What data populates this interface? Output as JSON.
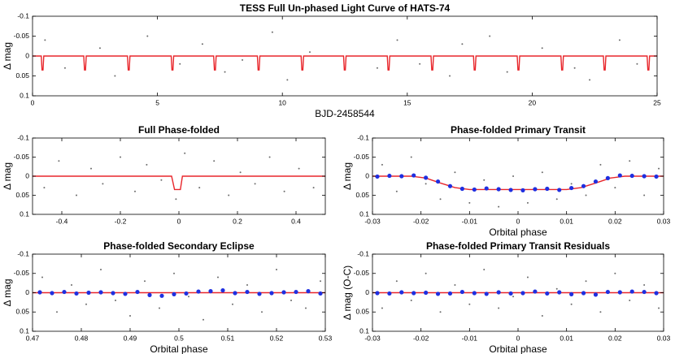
{
  "chart_data": [
    {
      "type": "scatter",
      "title": "TESS Full Un-phased Light Curve of HATS-74",
      "x_label": "BJD-2458544",
      "y_label": "Δ mag",
      "xlim": [
        0,
        25
      ],
      "xticks": [
        0,
        5,
        10,
        15,
        20,
        25
      ],
      "ylim": [
        -0.1,
        0.1
      ],
      "yticks": [
        -0.1,
        -0.05,
        0,
        0.05,
        0.1
      ],
      "y_inverted": true,
      "series": [
        {
          "mode": "markers",
          "color": "#6b6b6b",
          "x": [
            0.5,
            1.3,
            2.7,
            3.3,
            4.6,
            5.9,
            6.8,
            7.7,
            8.4,
            9.6,
            10.2,
            11.1,
            13.8,
            14.6,
            15.5,
            16.7,
            17.2,
            18.3,
            19.0,
            20.4,
            21.7,
            22.3,
            23.5,
            24.2
          ],
          "values": [
            -0.04,
            0.03,
            -0.02,
            0.05,
            -0.05,
            0.02,
            -0.03,
            0.04,
            0.01,
            -0.06,
            0.06,
            -0.01,
            0.03,
            -0.04,
            0.02,
            0.05,
            -0.03,
            -0.05,
            0.04,
            -0.02,
            0.03,
            0.06,
            -0.04,
            0.02
          ]
        },
        {
          "mode": "line",
          "color": "#e8262b",
          "x": [
            0,
            0.35,
            0.38,
            0.42,
            0.45,
            2.05,
            2.08,
            2.12,
            2.15,
            3.8,
            3.83,
            3.87,
            3.9,
            5.55,
            5.58,
            5.62,
            5.65,
            7.25,
            7.28,
            7.32,
            7.35,
            9.0,
            9.03,
            9.07,
            9.1,
            10.75,
            10.78,
            10.82,
            10.85,
            12.45,
            12.48,
            12.52,
            12.55,
            14.2,
            14.23,
            14.27,
            14.3,
            15.95,
            15.98,
            16.02,
            16.05,
            17.65,
            17.68,
            17.72,
            17.75,
            19.4,
            19.43,
            19.47,
            19.5,
            21.15,
            21.18,
            21.22,
            21.25,
            22.85,
            22.88,
            22.92,
            22.95,
            24.6,
            24.63,
            24.67,
            24.7,
            25
          ],
          "values": [
            0,
            0,
            0.035,
            0.035,
            0,
            0,
            0.035,
            0.035,
            0,
            0,
            0.035,
            0.035,
            0,
            0,
            0.035,
            0.035,
            0,
            0,
            0.035,
            0.035,
            0,
            0,
            0.035,
            0.035,
            0,
            0,
            0.035,
            0.035,
            0,
            0,
            0.035,
            0.035,
            0,
            0,
            0.035,
            0.035,
            0,
            0,
            0.035,
            0.035,
            0,
            0,
            0.035,
            0.035,
            0,
            0,
            0.035,
            0.035,
            0,
            0,
            0.035,
            0.035,
            0,
            0,
            0.035,
            0.035,
            0,
            0,
            0.035,
            0.035,
            0,
            0
          ]
        }
      ]
    },
    {
      "type": "scatter",
      "title": "Full Phase-folded",
      "y_label": "Δ mag",
      "xlim": [
        -0.5,
        0.5
      ],
      "xticks": [
        -0.4,
        -0.2,
        0,
        0.2,
        0.4
      ],
      "ylim": [
        -0.1,
        0.1
      ],
      "yticks": [
        -0.1,
        -0.05,
        0,
        0.05,
        0.1
      ],
      "y_inverted": true,
      "series": [
        {
          "mode": "markers",
          "color": "#6b6b6b",
          "x": [
            -0.46,
            -0.41,
            -0.35,
            -0.3,
            -0.26,
            -0.2,
            -0.15,
            -0.11,
            -0.06,
            -0.01,
            0.02,
            0.07,
            0.12,
            0.17,
            0.21,
            0.26,
            0.31,
            0.36,
            0.41,
            0.46
          ],
          "values": [
            0.03,
            -0.04,
            0.05,
            -0.02,
            0.02,
            -0.05,
            0.04,
            -0.03,
            0.01,
            0.06,
            -0.06,
            0.03,
            -0.04,
            0.05,
            -0.01,
            0.02,
            -0.05,
            0.04,
            -0.02,
            0.03
          ]
        },
        {
          "mode": "line",
          "color": "#e8262b",
          "x": [
            -0.5,
            -0.025,
            -0.015,
            0.005,
            0.012,
            0.5
          ],
          "values": [
            0,
            0,
            0.035,
            0.035,
            0,
            0
          ]
        }
      ]
    },
    {
      "type": "scatter",
      "title": "Phase-folded Primary Transit",
      "x_label": "Orbital phase",
      "y_label": "Δ mag",
      "xlim": [
        -0.03,
        0.03
      ],
      "xticks": [
        -0.03,
        -0.02,
        -0.01,
        0,
        0.01,
        0.02,
        0.03
      ],
      "ylim": [
        -0.1,
        0.1
      ],
      "yticks": [
        -0.1,
        -0.05,
        0,
        0.05,
        0.1
      ],
      "y_inverted": true,
      "series": [
        {
          "mode": "markers",
          "color": "#6b6b6b",
          "x": [
            -0.028,
            -0.025,
            -0.022,
            -0.019,
            -0.016,
            -0.013,
            -0.01,
            -0.007,
            -0.004,
            -0.001,
            0.002,
            0.005,
            0.008,
            0.011,
            0.014,
            0.017,
            0.02,
            0.023,
            0.026,
            0.029
          ],
          "values": [
            -0.03,
            0.04,
            -0.05,
            0.02,
            0.06,
            -0.01,
            0.07,
            0.01,
            0.08,
            0.0,
            0.07,
            -0.01,
            0.06,
            0.02,
            0.05,
            -0.03,
            0.03,
            -0.04,
            0.05,
            -0.02
          ]
        },
        {
          "mode": "line",
          "color": "#e8262b",
          "x": [
            -0.03,
            -0.022,
            -0.019,
            -0.016,
            -0.013,
            -0.01,
            0,
            0.01,
            0.013,
            0.016,
            0.019,
            0.022,
            0.03
          ],
          "values": [
            0,
            0,
            0.005,
            0.018,
            0.03,
            0.035,
            0.035,
            0.035,
            0.03,
            0.018,
            0.005,
            0,
            0
          ]
        },
        {
          "mode": "markers",
          "color": "#1f2fe0",
          "x": [
            -0.029,
            -0.0265,
            -0.024,
            -0.0215,
            -0.019,
            -0.0165,
            -0.014,
            -0.0115,
            -0.009,
            -0.0065,
            -0.004,
            -0.0015,
            0.001,
            0.0035,
            0.006,
            0.0085,
            0.011,
            0.0135,
            0.016,
            0.0185,
            0.021,
            0.0235,
            0.026,
            0.0285
          ],
          "values": [
            0.001,
            -0.001,
            0.0,
            -0.002,
            0.004,
            0.014,
            0.026,
            0.033,
            0.035,
            0.032,
            0.034,
            0.036,
            0.037,
            0.034,
            0.033,
            0.036,
            0.031,
            0.026,
            0.014,
            0.005,
            -0.002,
            -0.001,
            0.0,
            0.001
          ]
        }
      ]
    },
    {
      "type": "scatter",
      "title": "Phase-folded Secondary Eclipse",
      "x_label": "Orbital phase",
      "y_label": "Δ mag",
      "xlim": [
        0.47,
        0.53
      ],
      "xticks": [
        0.47,
        0.48,
        0.49,
        0.5,
        0.51,
        0.52,
        0.53
      ],
      "ylim": [
        -0.1,
        0.1
      ],
      "yticks": [
        -0.1,
        -0.05,
        0,
        0.05,
        0.1
      ],
      "y_inverted": true,
      "series": [
        {
          "mode": "markers",
          "color": "#6b6b6b",
          "x": [
            0.472,
            0.475,
            0.478,
            0.481,
            0.484,
            0.487,
            0.49,
            0.493,
            0.496,
            0.499,
            0.502,
            0.505,
            0.508,
            0.511,
            0.514,
            0.517,
            0.52,
            0.523,
            0.526,
            0.529
          ],
          "values": [
            -0.04,
            0.05,
            -0.02,
            0.03,
            -0.06,
            0.02,
            0.06,
            -0.03,
            0.04,
            -0.05,
            0.01,
            0.07,
            -0.04,
            0.03,
            -0.02,
            0.05,
            -0.06,
            0.02,
            0.04,
            -0.03
          ]
        },
        {
          "mode": "line",
          "color": "#e8262b",
          "x": [
            0.47,
            0.53
          ],
          "values": [
            0,
            0
          ]
        },
        {
          "mode": "markers",
          "color": "#1f2fe0",
          "x": [
            0.4715,
            0.474,
            0.4765,
            0.479,
            0.4815,
            0.484,
            0.4865,
            0.489,
            0.4915,
            0.494,
            0.4965,
            0.499,
            0.5015,
            0.504,
            0.5065,
            0.509,
            0.5115,
            0.514,
            0.5165,
            0.519,
            0.5215,
            0.524,
            0.5265,
            0.529
          ],
          "values": [
            -0.001,
            0.001,
            -0.002,
            0.002,
            0.0,
            -0.001,
            0.001,
            0.003,
            -0.002,
            0.006,
            0.008,
            0.004,
            0.002,
            -0.003,
            -0.004,
            -0.006,
            0.001,
            -0.002,
            0.003,
            0.001,
            -0.001,
            -0.002,
            -0.004,
            0.002
          ]
        }
      ]
    },
    {
      "type": "scatter",
      "title": "Phase-folded Primary Transit Residuals",
      "x_label": "Orbital phase",
      "y_label": "Δ mag (O-C)",
      "xlim": [
        -0.03,
        0.03
      ],
      "xticks": [
        -0.03,
        -0.02,
        -0.01,
        0,
        0.01,
        0.02,
        0.03
      ],
      "ylim": [
        -0.1,
        0.1
      ],
      "yticks": [
        -0.1,
        -0.05,
        0,
        0.05,
        0.1
      ],
      "y_inverted": true,
      "series": [
        {
          "mode": "markers",
          "color": "#6b6b6b",
          "x": [
            -0.028,
            -0.025,
            -0.022,
            -0.019,
            -0.016,
            -0.013,
            -0.01,
            -0.007,
            -0.004,
            -0.001,
            0.002,
            0.005,
            0.008,
            0.011,
            0.014,
            0.017,
            0.02,
            0.023,
            0.026,
            0.029
          ],
          "values": [
            0.04,
            -0.03,
            0.02,
            -0.05,
            0.05,
            -0.02,
            0.03,
            -0.06,
            0.04,
            0.01,
            -0.04,
            0.06,
            -0.01,
            0.03,
            -0.03,
            0.05,
            -0.05,
            0.02,
            -0.02,
            0.04
          ]
        },
        {
          "mode": "line",
          "color": "#e8262b",
          "x": [
            -0.03,
            0.03
          ],
          "values": [
            0,
            0
          ]
        },
        {
          "mode": "markers",
          "color": "#1f2fe0",
          "x": [
            -0.029,
            -0.0265,
            -0.024,
            -0.0215,
            -0.019,
            -0.0165,
            -0.014,
            -0.0115,
            -0.009,
            -0.0065,
            -0.004,
            -0.0015,
            0.001,
            0.0035,
            0.006,
            0.0085,
            0.011,
            0.0135,
            0.016,
            0.0185,
            0.021,
            0.0235,
            0.026,
            0.0285
          ],
          "values": [
            0.001,
            0.002,
            -0.001,
            0.001,
            0.0,
            0.003,
            0.002,
            -0.002,
            0.001,
            0.003,
            -0.001,
            0.002,
            0.001,
            -0.003,
            0.002,
            -0.001,
            0.004,
            0.001,
            0.005,
            -0.002,
            -0.001,
            -0.003,
            -0.002,
            0.001
          ]
        }
      ]
    }
  ]
}
